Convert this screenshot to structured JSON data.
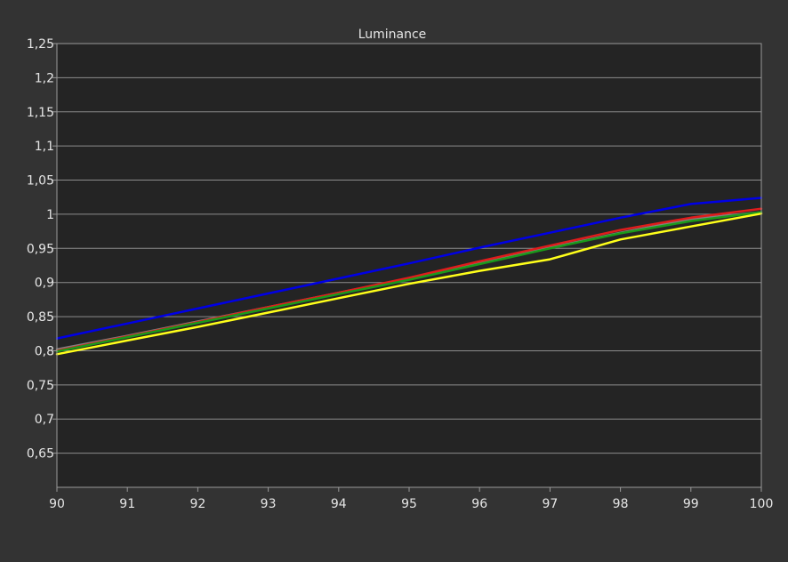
{
  "chart_data": {
    "type": "line",
    "title": "Luminance",
    "xlabel": "",
    "ylabel": "",
    "xlim": [
      90,
      100
    ],
    "ylim": [
      0.6,
      1.25
    ],
    "x_ticks": [
      "90",
      "91",
      "92",
      "93",
      "94",
      "95",
      "96",
      "97",
      "98",
      "99",
      "100"
    ],
    "y_ticks": [
      "1,25",
      "1,2",
      "1,15",
      "1,1",
      "1,05",
      "1",
      "0,95",
      "0,9",
      "0,85",
      "0,8",
      "0,75",
      "0,7",
      "0,65"
    ],
    "y_tick_values": [
      1.25,
      1.2,
      1.15,
      1.1,
      1.05,
      1.0,
      0.95,
      0.9,
      0.85,
      0.8,
      0.75,
      0.7,
      0.65
    ],
    "grid": true,
    "colors": {
      "background": "#333333",
      "plot_background": "#242424",
      "grid": "#8c8c8c",
      "frame": "#9a9a9a"
    },
    "x": [
      90,
      91,
      92,
      93,
      94,
      95,
      96,
      97,
      98,
      99,
      100
    ],
    "series": [
      {
        "color": "#0000e6",
        "values": [
          0.818,
          0.84,
          0.862,
          0.884,
          0.906,
          0.928,
          0.951,
          0.973,
          0.995,
          1.015,
          1.024
        ]
      },
      {
        "color": "#808080",
        "values": [
          0.802,
          0.822,
          0.843,
          0.864,
          0.885,
          0.906,
          0.928,
          0.951,
          0.973,
          0.993,
          1.003
        ]
      },
      {
        "color": "#e01c1c",
        "values": [
          0.8,
          0.821,
          0.842,
          0.864,
          0.885,
          0.907,
          0.931,
          0.954,
          0.977,
          0.995,
          1.008
        ]
      },
      {
        "color": "#1a9a1a",
        "values": [
          0.799,
          0.82,
          0.841,
          0.862,
          0.883,
          0.904,
          0.927,
          0.95,
          0.972,
          0.99,
          1.003
        ]
      },
      {
        "color": "#ffff1a",
        "values": [
          0.795,
          0.815,
          0.835,
          0.856,
          0.877,
          0.898,
          0.917,
          0.934,
          0.963,
          0.982,
          1.001
        ]
      }
    ]
  }
}
